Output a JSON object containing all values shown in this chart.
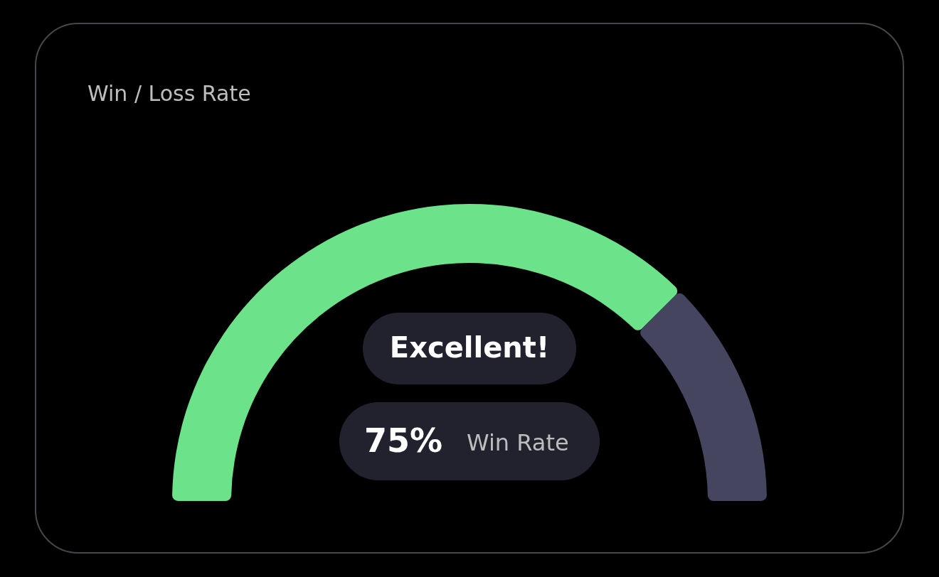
{
  "chart_data": {
    "type": "donut",
    "title": "Win / Loss Rate",
    "categories": [
      "Win Rate",
      null
    ],
    "values": [
      75,
      25
    ],
    "colors": [
      "#6ce38a",
      "#45455f"
    ],
    "value_labels": [
      "75%",
      null
    ],
    "annotations": [
      "Excellent!"
    ]
  }
}
